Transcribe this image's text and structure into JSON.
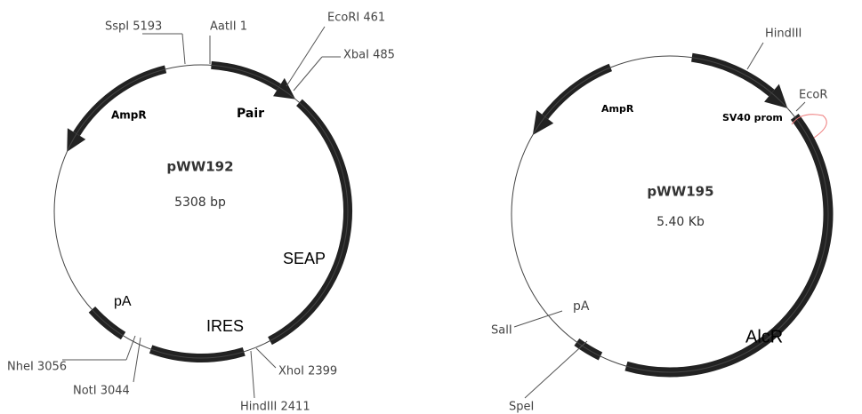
{
  "plasmids": [
    {
      "name": "pWW192",
      "size": "5308 bp",
      "features": [
        "Pair",
        "AmpR",
        "SEAP",
        "pA",
        "IRES"
      ],
      "sites": [
        "SspI 5193",
        "AatII 1",
        "EcoRI 461",
        "XbaI 485",
        "NheI 3056",
        "NotI 3044",
        "XhoI 2399",
        "HindIII 2411"
      ]
    },
    {
      "name": "pWW195",
      "size": "5.40 Kb",
      "features": [
        "SV40 prom",
        "AmpR",
        "AlcR",
        "pA"
      ],
      "sites": [
        "HindIII",
        "EcoR",
        "SalI",
        "SpeI"
      ]
    }
  ]
}
